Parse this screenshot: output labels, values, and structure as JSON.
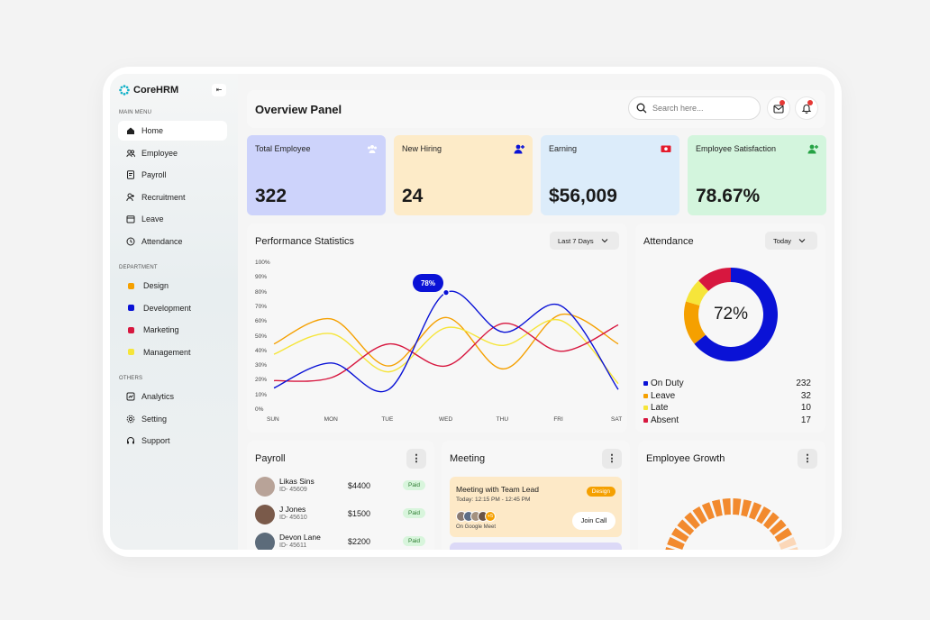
{
  "app": {
    "name": "CoreHRM",
    "collapse_icon": "collapse-icon"
  },
  "sidebar": {
    "main_title": "MAIN MENU",
    "main_items": [
      {
        "label": "Home",
        "icon": "home-icon",
        "active": true
      },
      {
        "label": "Employee",
        "icon": "users-icon"
      },
      {
        "label": "Payroll",
        "icon": "document-icon"
      },
      {
        "label": "Recruitment",
        "icon": "user-add-icon"
      },
      {
        "label": "Leave",
        "icon": "calendar-icon"
      },
      {
        "label": "Attendance",
        "icon": "clock-icon"
      }
    ],
    "dept_title": "DEPARTMENT",
    "dept_items": [
      {
        "label": "Design",
        "color": "#f5a000"
      },
      {
        "label": "Development",
        "color": "#0a12d6"
      },
      {
        "label": "Marketing",
        "color": "#d7173f"
      },
      {
        "label": "Management",
        "color": "#f6e53a"
      }
    ],
    "others_title": "OTHERS",
    "other_items": [
      {
        "label": "Analytics",
        "icon": "analytics-icon"
      },
      {
        "label": "Setting",
        "icon": "gear-icon"
      },
      {
        "label": "Support",
        "icon": "headset-icon"
      }
    ]
  },
  "header": {
    "title": "Overview Panel",
    "search_placeholder": "Search here..."
  },
  "kpis": [
    {
      "label": "Total Employee",
      "value": "322",
      "bg": "#cdd3fb",
      "icon": "team-icon"
    },
    {
      "label": "New Hiring",
      "value": "24",
      "bg": "#fdebc8",
      "icon": "user-add-icon"
    },
    {
      "label": "Earning",
      "value": "$56,009",
      "bg": "#dcecfa",
      "icon": "money-icon"
    },
    {
      "label": "Employee Satisfaction",
      "value": "78.67%",
      "bg": "#d3f5dd",
      "icon": "user-check-icon"
    }
  ],
  "performance": {
    "title": "Performance Statistics",
    "range": "Last 7 Days",
    "tooltip": "78%"
  },
  "chart_data": {
    "type": "line",
    "x": [
      "SUN",
      "MON",
      "TUE",
      "WED",
      "THU",
      "FRI",
      "SAT"
    ],
    "y_ticks": [
      "100%",
      "90%",
      "80%",
      "70%",
      "60%",
      "50%",
      "40%",
      "30%",
      "20%",
      "10%",
      "0%"
    ],
    "ylim": [
      0,
      100
    ],
    "series": [
      {
        "color": "#0a12d6",
        "values": [
          15,
          32,
          14,
          80,
          53,
          71,
          14
        ]
      },
      {
        "color": "#f5a000",
        "values": [
          45,
          62,
          30,
          63,
          28,
          65,
          45
        ]
      },
      {
        "color": "#f6e53a",
        "values": [
          38,
          52,
          26,
          56,
          44,
          61,
          18
        ]
      },
      {
        "color": "#d7173f",
        "values": [
          20,
          22,
          45,
          30,
          59,
          40,
          58
        ]
      }
    ]
  },
  "attendance": {
    "title": "Attendance",
    "range": "Today",
    "center": "72%",
    "items": [
      {
        "label": "On Duty",
        "value": "232",
        "color": "#0a12d6",
        "fraction": 0.689
      },
      {
        "label": "Leave",
        "value": "32",
        "color": "#f5a000",
        "fraction": 0.164
      },
      {
        "label": "Late",
        "value": "10",
        "color": "#f6e53a",
        "fraction": 0.09
      },
      {
        "label": "Absent",
        "value": "17",
        "color": "#d7173f",
        "fraction": 0.13
      }
    ]
  },
  "payroll": {
    "title": "Payroll",
    "rows": [
      {
        "name": "Likas Sins",
        "id": "ID- 45609",
        "amount": "$4400",
        "status": "Paid"
      },
      {
        "name": "J Jones",
        "id": "ID- 45610",
        "amount": "$1500",
        "status": "Paid"
      },
      {
        "name": "Devon Lane",
        "id": "ID- 45611",
        "amount": "$2200",
        "status": "Paid"
      }
    ]
  },
  "meeting": {
    "title": "Meeting",
    "card": {
      "title": "Meeting with Team Lead",
      "time": "Today: 12:15 PM - 12:45 PM",
      "tag": "Design",
      "platform": "On Google Meet",
      "join": "Join Call",
      "extra": "+5"
    }
  },
  "growth": {
    "title": "Employee Growth"
  }
}
